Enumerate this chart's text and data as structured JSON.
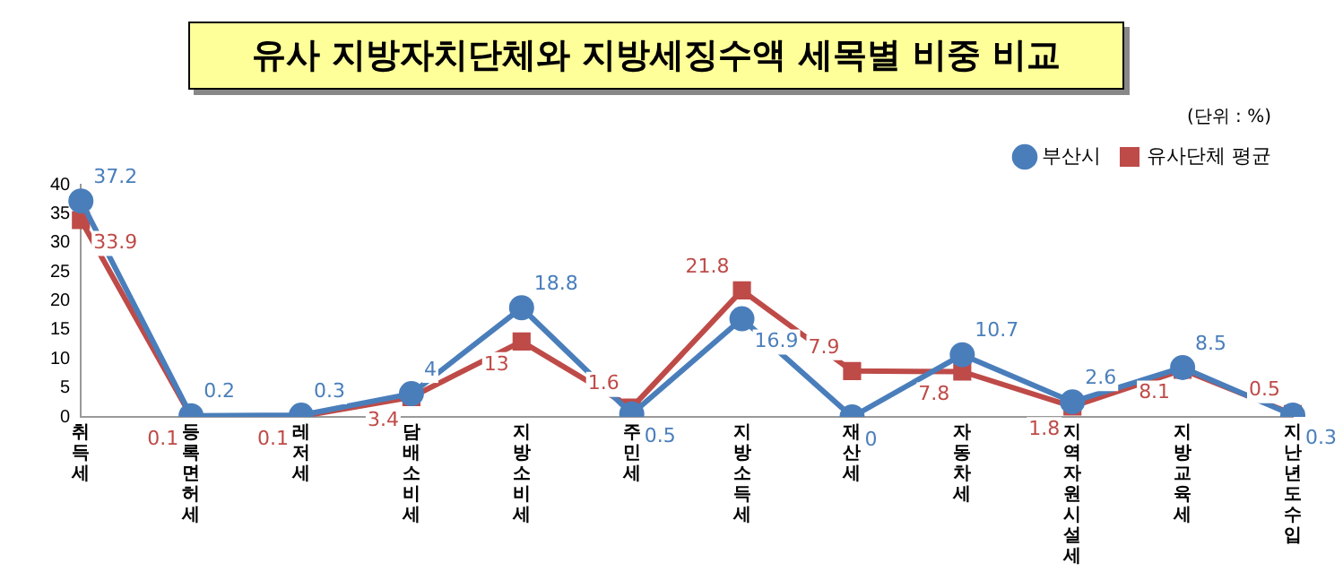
{
  "chart_data": {
    "type": "line",
    "title": "유사 지방자치단체와 지방세징수액 세목별 비중 비교",
    "annotations": [
      "(단위 : %)"
    ],
    "categories": [
      "취득세",
      "등록면허세",
      "레저세",
      "담배소비세",
      "지방소비세",
      "주민세",
      "지방소득세",
      "재산세",
      "자동차세",
      "지역자원시설세",
      "지방교육세",
      "지난년도수입"
    ],
    "series": [
      {
        "name": "부산시",
        "color": "#4a7ebb",
        "marker": "circle",
        "values": [
          37.2,
          0.2,
          0.3,
          4,
          18.8,
          0.5,
          16.9,
          0,
          10.7,
          2.6,
          8.5,
          0.3
        ]
      },
      {
        "name": "유사단체 평균",
        "color": "#be4b48",
        "marker": "square",
        "values": [
          33.9,
          0.1,
          0.1,
          3.4,
          13,
          1.6,
          21.8,
          7.9,
          7.8,
          1.8,
          8.1,
          0.5
        ]
      }
    ],
    "ylim": [
      0,
      40
    ],
    "yticks": [
      0,
      5,
      10,
      15,
      20,
      25,
      30,
      35,
      40
    ],
    "grid": false,
    "legend": "top right",
    "data_labels": true
  }
}
